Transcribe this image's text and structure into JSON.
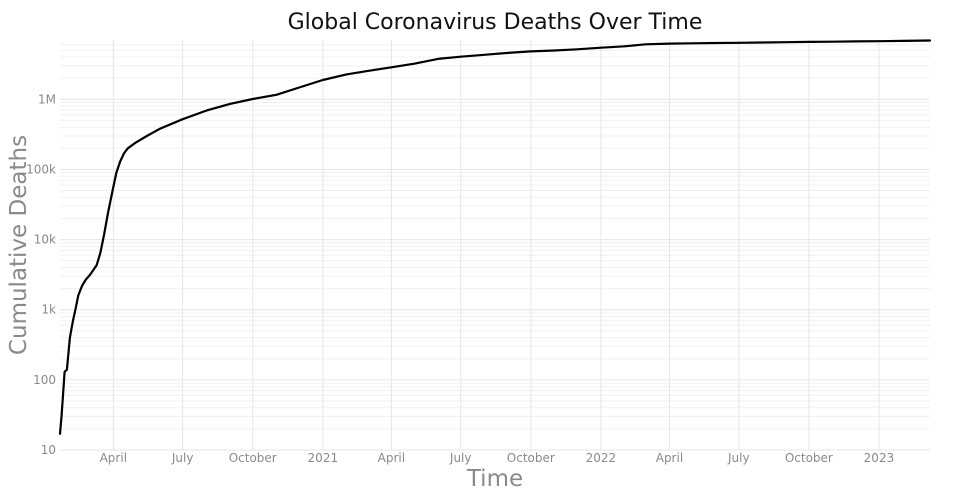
{
  "chart_data": {
    "type": "line",
    "title": "Global Coronavirus Deaths Over Time",
    "xlabel": "Time",
    "ylabel": "Cumulative Deaths",
    "y_scale": "log",
    "ylim": [
      10,
      7000000
    ],
    "xlim": [
      "2020-01-22",
      "2023-03-09"
    ],
    "grid": true,
    "legend": "none",
    "line_color": "#000000",
    "x_ticks": [
      {
        "date": "2020-04-01",
        "label": "April"
      },
      {
        "date": "2020-07-01",
        "label": "July"
      },
      {
        "date": "2020-10-01",
        "label": "October"
      },
      {
        "date": "2021-01-01",
        "label": "2021"
      },
      {
        "date": "2021-04-01",
        "label": "April"
      },
      {
        "date": "2021-07-01",
        "label": "July"
      },
      {
        "date": "2021-10-01",
        "label": "October"
      },
      {
        "date": "2022-01-01",
        "label": "2022"
      },
      {
        "date": "2022-04-01",
        "label": "April"
      },
      {
        "date": "2022-07-01",
        "label": "July"
      },
      {
        "date": "2022-10-01",
        "label": "October"
      },
      {
        "date": "2023-01-01",
        "label": "2023"
      }
    ],
    "y_ticks": [
      {
        "value": 10,
        "label": "10"
      },
      {
        "value": 100,
        "label": "100"
      },
      {
        "value": 1000,
        "label": "1k"
      },
      {
        "value": 10000,
        "label": "10k"
      },
      {
        "value": 100000,
        "label": "100k"
      },
      {
        "value": 1000000,
        "label": "1M"
      }
    ],
    "series": [
      {
        "x": [
          "2020-01-22",
          "2020-01-24",
          "2020-01-26",
          "2020-01-28",
          "2020-01-31",
          "2020-02-04",
          "2020-02-08",
          "2020-02-12",
          "2020-02-15",
          "2020-02-20",
          "2020-02-25",
          "2020-03-01",
          "2020-03-05",
          "2020-03-10",
          "2020-03-15",
          "2020-03-20",
          "2020-03-25",
          "2020-03-31",
          "2020-04-05",
          "2020-04-10",
          "2020-04-15",
          "2020-04-20",
          "2020-04-30",
          "2020-05-15",
          "2020-06-01",
          "2020-07-01",
          "2020-08-01",
          "2020-09-01",
          "2020-10-01",
          "2020-11-01",
          "2020-12-01",
          "2021-01-01",
          "2021-02-01",
          "2021-03-01",
          "2021-04-01",
          "2021-05-01",
          "2021-06-01",
          "2021-07-01",
          "2021-08-01",
          "2021-09-01",
          "2021-10-01",
          "2021-11-01",
          "2021-12-01",
          "2022-01-01",
          "2022-02-01",
          "2022-03-01",
          "2022-04-01",
          "2022-05-01",
          "2022-06-01",
          "2022-07-01",
          "2022-08-01",
          "2022-09-01",
          "2022-10-01",
          "2022-11-01",
          "2022-12-01",
          "2023-01-01",
          "2023-02-01",
          "2023-03-09"
        ],
        "values": [
          17,
          30,
          60,
          130,
          140,
          400,
          700,
          1100,
          1600,
          2200,
          2700,
          3100,
          3600,
          4300,
          6500,
          12000,
          24000,
          50000,
          90000,
          130000,
          170000,
          200000,
          240000,
          300000,
          380000,
          520000,
          690000,
          860000,
          1010000,
          1160000,
          1470000,
          1880000,
          2260000,
          2540000,
          2860000,
          3220000,
          3770000,
          4050000,
          4310000,
          4590000,
          4810000,
          4960000,
          5150000,
          5440000,
          5700000,
          6070000,
          6210000,
          6290000,
          6340000,
          6380000,
          6450000,
          6510000,
          6570000,
          6620000,
          6680000,
          6730000,
          6800000,
          6880000
        ]
      }
    ]
  }
}
